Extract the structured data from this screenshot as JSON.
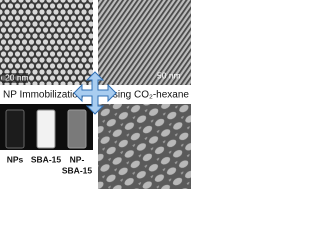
{
  "panels": {
    "top_left": {
      "scale_bar": "20 nm"
    },
    "top_right": {
      "scale_bar": "50 nm"
    },
    "bottom_left": {
      "labels": [
        "NPs",
        "SBA-15"
      ],
      "label_multiline": [
        "NP-",
        "SBA-15"
      ]
    }
  },
  "caption": {
    "left": "NP Immobilization",
    "right": "using CO₂-hexane"
  }
}
